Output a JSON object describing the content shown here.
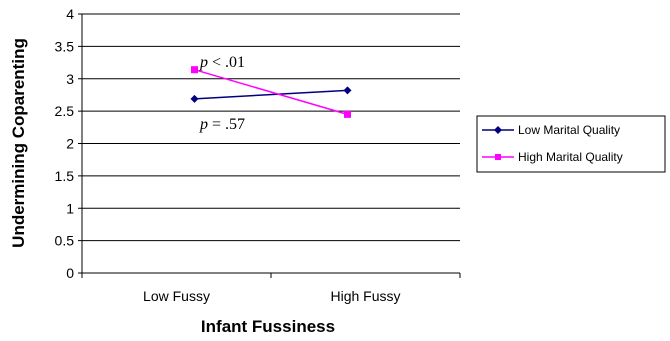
{
  "chart_data": {
    "type": "line",
    "categories": [
      "Low Fussy",
      "High Fussy"
    ],
    "series": [
      {
        "name": "Low Marital Quality",
        "values": [
          2.69,
          2.82
        ],
        "color": "#000080",
        "marker": "diamond"
      },
      {
        "name": "High Marital Quality",
        "values": [
          3.14,
          2.45
        ],
        "color": "#ff00ff",
        "marker": "square"
      }
    ],
    "title": "",
    "xlabel": "Infant Fussiness",
    "ylabel": "Undermining Coparenting",
    "ylim": [
      0,
      4
    ],
    "yticks": [
      "0",
      "0.5",
      "1",
      "1.5",
      "2",
      "2.5",
      "3",
      "3.5",
      "4"
    ],
    "grid": true,
    "legend_position": "right",
    "annotations": [
      {
        "p_symbol": "p",
        "text": " < .01"
      },
      {
        "p_symbol": "p",
        "text": " = .57"
      }
    ]
  }
}
